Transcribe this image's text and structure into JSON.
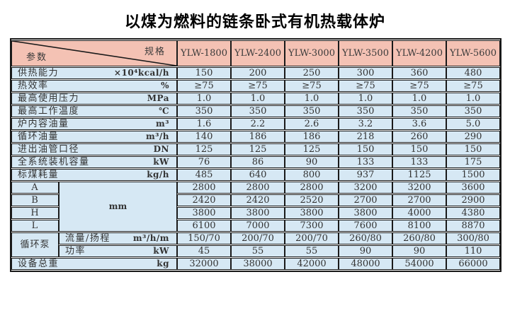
{
  "title": "以煤为燃料的链条卧式有机热载体炉",
  "table": {
    "corner": {
      "spec": "规格",
      "param": "参数"
    },
    "models": [
      "YLW-1800",
      "YLW-2400",
      "YLW-3000",
      "YLW-3500",
      "YLW-4200",
      "YLW-5600"
    ],
    "param_rows": [
      {
        "label": "供热能力",
        "unit": "×10⁴kcal/h",
        "values": [
          "150",
          "200",
          "250",
          "300",
          "360",
          "480"
        ]
      },
      {
        "label": "热效率",
        "unit": "%",
        "values": [
          "≥75",
          "≥75",
          "≥75",
          "≥75",
          "≥75",
          "≥75"
        ]
      },
      {
        "label": "最高使用压力",
        "unit": "MPa",
        "values": [
          "1.0",
          "1.0",
          "1.0",
          "1.0",
          "1.0",
          "1.0"
        ]
      },
      {
        "label": "最高工作温度",
        "unit": "℃",
        "values": [
          "350",
          "350",
          "350",
          "350",
          "350",
          "350"
        ]
      },
      {
        "label": "炉内容油量",
        "unit": "m³",
        "values": [
          "1.6",
          "2.2",
          "2.6",
          "3.2",
          "3.6",
          "5.0"
        ]
      },
      {
        "label": "循环油量",
        "unit": "m³/h",
        "values": [
          "140",
          "186",
          "186",
          "218",
          "260",
          "290"
        ]
      },
      {
        "label": "进出油管口径",
        "unit": "DN",
        "values": [
          "125",
          "125",
          "125",
          "150",
          "150",
          "150"
        ]
      },
      {
        "label": "全系统装机容量",
        "unit": "kW",
        "values": [
          "76",
          "86",
          "90",
          "133",
          "133",
          "175"
        ]
      },
      {
        "label": "标煤耗量",
        "unit": "kg/h",
        "values": [
          "485",
          "640",
          "800",
          "937",
          "1125",
          "1500"
        ]
      }
    ],
    "dimensions": {
      "unit": "mm",
      "rows": [
        {
          "label": "A",
          "values": [
            "2800",
            "2800",
            "2800",
            "3200",
            "3200",
            "3600"
          ]
        },
        {
          "label": "B",
          "values": [
            "2420",
            "2420",
            "2520",
            "2700",
            "2700",
            "2900"
          ]
        },
        {
          "label": "H",
          "values": [
            "3800",
            "3800",
            "3800",
            "3800",
            "4000",
            "4380"
          ]
        },
        {
          "label": "L",
          "values": [
            "6100",
            "7000",
            "7300",
            "7600",
            "8100",
            "8870"
          ]
        }
      ]
    },
    "pump": {
      "label": "循环泵",
      "rows": [
        {
          "label": "流量/扬程",
          "unit": "m³/h/m",
          "values": [
            "150/70",
            "200/70",
            "200/70",
            "260/80",
            "260/80",
            "300/80"
          ]
        },
        {
          "label": "功率",
          "unit": "kW",
          "values": [
            "45",
            "55",
            "55",
            "90",
            "90",
            "110"
          ]
        }
      ]
    },
    "total_row": {
      "label": "设备总重",
      "unit": "kg",
      "values": [
        "32000",
        "38000",
        "42000",
        "48000",
        "54000",
        "66000"
      ]
    }
  },
  "colors": {
    "header_bg": "#f4c2b4",
    "cell_bg": "#d6e8f4",
    "border": "#1a1a1a"
  }
}
